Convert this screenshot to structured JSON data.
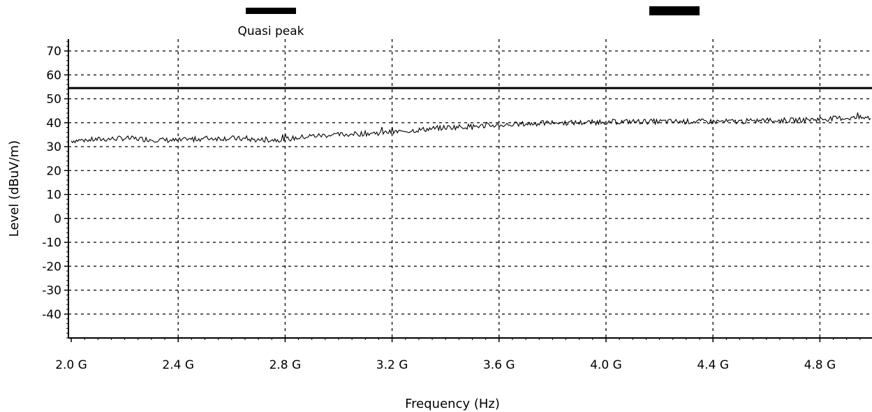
{
  "chart_data": {
    "type": "line",
    "title": "",
    "xlabel": "Frequency (Hz)",
    "ylabel": "Level (dBuV/m)",
    "xlim": [
      2.0,
      5.0
    ],
    "ylim": [
      -50,
      75
    ],
    "x_unit": "GHz",
    "x_ticks": [
      2.0,
      2.4,
      2.8,
      3.2,
      3.6,
      4.0,
      4.4,
      4.8
    ],
    "x_tick_labels": [
      "2.0 G",
      "2.4 G",
      "2.8 G",
      "3.2 G",
      "3.6 G",
      "4.0 G",
      "4.4 G",
      "4.8 G"
    ],
    "y_ticks": [
      70,
      60,
      50,
      40,
      30,
      20,
      10,
      0,
      -10,
      -20,
      -30,
      -40
    ],
    "y_tick_labels": [
      "70",
      "60",
      "50",
      "40",
      "30",
      "20",
      "10",
      "0",
      "-10",
      "-20",
      "-30",
      "-40"
    ],
    "grid": true,
    "legend_placement": "top",
    "legend": [
      {
        "label": "Quasi peak",
        "color": "#000000"
      },
      {
        "label": "",
        "color": "#000000"
      }
    ],
    "limit_line": {
      "y": 54.5,
      "color": "#000000"
    },
    "series": [
      {
        "color": "#000000",
        "x": [
          2.0,
          2.1,
          2.2,
          2.3,
          2.4,
          2.5,
          2.6,
          2.7,
          2.8,
          2.9,
          3.0,
          3.1,
          3.2,
          3.3,
          3.4,
          3.5,
          3.6,
          3.7,
          3.8,
          3.9,
          4.0,
          4.1,
          4.2,
          4.3,
          4.4,
          4.5,
          4.6,
          4.7,
          4.8,
          4.9,
          5.0
        ],
        "values": [
          32.5,
          33.0,
          33.5,
          33.0,
          32.5,
          33.5,
          33.5,
          32.8,
          33.0,
          34.5,
          35.0,
          35.5,
          36.0,
          37.0,
          38.0,
          38.5,
          39.0,
          39.5,
          40.0,
          40.0,
          40.3,
          40.5,
          40.5,
          40.5,
          40.5,
          40.5,
          41.0,
          41.0,
          41.5,
          42.0,
          42.0
        ]
      }
    ]
  }
}
